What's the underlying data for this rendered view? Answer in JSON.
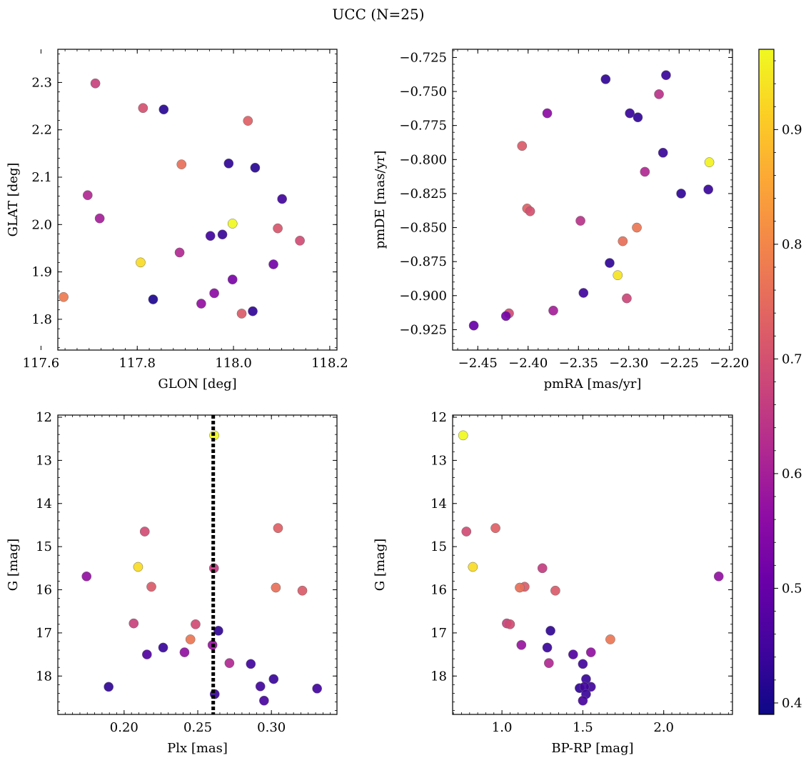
{
  "suptitle": "UCC (N=25)",
  "colorbar": {
    "colormap": "plasma",
    "range": [
      0.39,
      0.97
    ],
    "ticks": [
      "0.4",
      "0.5",
      "0.6",
      "0.7",
      "0.8",
      "0.9"
    ],
    "tick_values": [
      0.4,
      0.5,
      0.6,
      0.7,
      0.8,
      0.9
    ]
  },
  "chart_data": [
    {
      "type": "scatter",
      "xlabel": "GLON [deg]",
      "ylabel": "GLAT [deg]",
      "xlim": [
        117.635,
        118.215
      ],
      "ylim": [
        1.735,
        2.37
      ],
      "xticks": [
        117.6,
        117.8,
        118.0,
        118.2
      ],
      "xticklabels": [
        "117.6",
        "117.8",
        "118.0",
        "118.2"
      ],
      "yticks": [
        1.8,
        1.9,
        2.0,
        2.1,
        2.2,
        2.3
      ],
      "yticklabels": [
        "1.8",
        "1.9",
        "2.0",
        "2.1",
        "2.2",
        "2.3"
      ],
      "xminor": 0.025,
      "yminor": 0.02,
      "points": [
        {
          "x": 117.713,
          "y": 2.298,
          "c": 0.67
        },
        {
          "x": 117.812,
          "y": 2.246,
          "c": 0.7
        },
        {
          "x": 117.855,
          "y": 2.243,
          "c": 0.42
        },
        {
          "x": 118.03,
          "y": 2.219,
          "c": 0.73
        },
        {
          "x": 117.892,
          "y": 2.127,
          "c": 0.76
        },
        {
          "x": 117.99,
          "y": 2.129,
          "c": 0.43
        },
        {
          "x": 118.045,
          "y": 2.12,
          "c": 0.42
        },
        {
          "x": 117.697,
          "y": 2.062,
          "c": 0.62
        },
        {
          "x": 118.101,
          "y": 2.054,
          "c": 0.45
        },
        {
          "x": 117.722,
          "y": 2.013,
          "c": 0.6
        },
        {
          "x": 117.998,
          "y": 2.002,
          "c": 0.97
        },
        {
          "x": 118.092,
          "y": 1.992,
          "c": 0.71
        },
        {
          "x": 118.138,
          "y": 1.966,
          "c": 0.69
        },
        {
          "x": 117.952,
          "y": 1.976,
          "c": 0.45
        },
        {
          "x": 117.977,
          "y": 1.979,
          "c": 0.44
        },
        {
          "x": 117.888,
          "y": 1.941,
          "c": 0.62
        },
        {
          "x": 117.807,
          "y": 1.92,
          "c": 0.93
        },
        {
          "x": 118.083,
          "y": 1.916,
          "c": 0.52
        },
        {
          "x": 117.998,
          "y": 1.884,
          "c": 0.53
        },
        {
          "x": 117.96,
          "y": 1.855,
          "c": 0.56
        },
        {
          "x": 117.647,
          "y": 1.847,
          "c": 0.78
        },
        {
          "x": 117.833,
          "y": 1.842,
          "c": 0.41
        },
        {
          "x": 117.933,
          "y": 1.833,
          "c": 0.57
        },
        {
          "x": 118.04,
          "y": 1.817,
          "c": 0.43
        },
        {
          "x": 118.017,
          "y": 1.812,
          "c": 0.72
        }
      ]
    },
    {
      "type": "scatter",
      "xlabel": "pmRA [mas/yr]",
      "ylabel": "pmDE [mas/yr]",
      "xlim": [
        -2.475,
        -2.197
      ],
      "ylim": [
        -0.94,
        -0.719
      ],
      "xticks": [
        -2.45,
        -2.4,
        -2.35,
        -2.3,
        -2.25,
        -2.2
      ],
      "xticklabels": [
        "−2.45",
        "−2.40",
        "−2.35",
        "−2.30",
        "−2.25",
        "−2.20"
      ],
      "yticks": [
        -0.925,
        -0.9,
        -0.875,
        -0.85,
        -0.825,
        -0.8,
        -0.775,
        -0.75,
        -0.725
      ],
      "yticklabels": [
        "−0.925",
        "−0.900",
        "−0.875",
        "−0.850",
        "−0.825",
        "−0.800",
        "−0.775",
        "−0.750",
        "−0.725"
      ],
      "xminor": 0.01,
      "yminor": 0.005,
      "points": [
        {
          "x": -2.263,
          "y": -0.738,
          "c": 0.44
        },
        {
          "x": -2.323,
          "y": -0.741,
          "c": 0.43
        },
        {
          "x": -2.27,
          "y": -0.752,
          "c": 0.64
        },
        {
          "x": -2.381,
          "y": -0.766,
          "c": 0.56
        },
        {
          "x": -2.299,
          "y": -0.766,
          "c": 0.44
        },
        {
          "x": -2.291,
          "y": -0.769,
          "c": 0.43
        },
        {
          "x": -2.406,
          "y": -0.79,
          "c": 0.72
        },
        {
          "x": -2.266,
          "y": -0.795,
          "c": 0.44
        },
        {
          "x": -2.22,
          "y": -0.802,
          "c": 0.96
        },
        {
          "x": -2.284,
          "y": -0.809,
          "c": 0.62
        },
        {
          "x": -2.248,
          "y": -0.825,
          "c": 0.43
        },
        {
          "x": -2.221,
          "y": -0.822,
          "c": 0.44
        },
        {
          "x": -2.401,
          "y": -0.836,
          "c": 0.73
        },
        {
          "x": -2.398,
          "y": -0.838,
          "c": 0.7
        },
        {
          "x": -2.348,
          "y": -0.845,
          "c": 0.64
        },
        {
          "x": -2.292,
          "y": -0.85,
          "c": 0.77
        },
        {
          "x": -2.306,
          "y": -0.86,
          "c": 0.76
        },
        {
          "x": -2.319,
          "y": -0.876,
          "c": 0.43
        },
        {
          "x": -2.311,
          "y": -0.885,
          "c": 0.94
        },
        {
          "x": -2.345,
          "y": -0.898,
          "c": 0.45
        },
        {
          "x": -2.302,
          "y": -0.902,
          "c": 0.68
        },
        {
          "x": -2.375,
          "y": -0.911,
          "c": 0.6
        },
        {
          "x": -2.419,
          "y": -0.913,
          "c": 0.69
        },
        {
          "x": -2.422,
          "y": -0.915,
          "c": 0.52
        },
        {
          "x": -2.454,
          "y": -0.922,
          "c": 0.5
        }
      ]
    },
    {
      "type": "scatter",
      "xlabel": "Plx [mas]",
      "ylabel": "G [mag]",
      "xlim": [
        0.155,
        0.3445
      ],
      "ylim": [
        18.89,
        11.95
      ],
      "xticks": [
        0.2,
        0.25,
        0.3
      ],
      "xticklabels": [
        "0.20",
        "0.25",
        "0.30"
      ],
      "yticks": [
        12,
        13,
        14,
        15,
        16,
        17,
        18
      ],
      "yticklabels": [
        "12",
        "13",
        "14",
        "15",
        "16",
        "17",
        "18"
      ],
      "xminor": 0.005,
      "yminor": 0.2,
      "vline": {
        "x": 0.2605,
        "style": "dotted"
      },
      "points": [
        {
          "x": 0.2612,
          "y": 12.42,
          "c": 0.97
        },
        {
          "x": 0.214,
          "y": 14.65,
          "c": 0.69
        },
        {
          "x": 0.3045,
          "y": 14.57,
          "c": 0.73
        },
        {
          "x": 0.1745,
          "y": 15.69,
          "c": 0.57
        },
        {
          "x": 0.2095,
          "y": 15.47,
          "c": 0.93
        },
        {
          "x": 0.261,
          "y": 15.5,
          "c": 0.66
        },
        {
          "x": 0.2185,
          "y": 15.93,
          "c": 0.72
        },
        {
          "x": 0.303,
          "y": 15.95,
          "c": 0.76
        },
        {
          "x": 0.321,
          "y": 16.02,
          "c": 0.72
        },
        {
          "x": 0.2065,
          "y": 16.78,
          "c": 0.67
        },
        {
          "x": 0.2485,
          "y": 16.8,
          "c": 0.69
        },
        {
          "x": 0.264,
          "y": 16.95,
          "c": 0.43
        },
        {
          "x": 0.245,
          "y": 17.15,
          "c": 0.77
        },
        {
          "x": 0.26,
          "y": 17.28,
          "c": 0.58
        },
        {
          "x": 0.2265,
          "y": 17.34,
          "c": 0.44
        },
        {
          "x": 0.241,
          "y": 17.45,
          "c": 0.57
        },
        {
          "x": 0.2155,
          "y": 17.5,
          "c": 0.47
        },
        {
          "x": 0.2715,
          "y": 17.7,
          "c": 0.62
        },
        {
          "x": 0.286,
          "y": 17.72,
          "c": 0.45
        },
        {
          "x": 0.3015,
          "y": 18.07,
          "c": 0.44
        },
        {
          "x": 0.1895,
          "y": 18.25,
          "c": 0.43
        },
        {
          "x": 0.2925,
          "y": 18.24,
          "c": 0.45
        },
        {
          "x": 0.331,
          "y": 18.29,
          "c": 0.45
        },
        {
          "x": 0.2615,
          "y": 18.42,
          "c": 0.44
        },
        {
          "x": 0.295,
          "y": 18.57,
          "c": 0.46
        }
      ]
    },
    {
      "type": "scatter",
      "xlabel": "BP-RP [mag]",
      "ylabel": "G [mag]",
      "xlim": [
        0.695,
        2.425
      ],
      "ylim": [
        18.89,
        11.95
      ],
      "xticks": [
        1.0,
        1.5,
        2.0
      ],
      "xticklabels": [
        "1.0",
        "1.5",
        "2.0"
      ],
      "yticks": [
        12,
        13,
        14,
        15,
        16,
        17,
        18
      ],
      "yticklabels": [
        "12",
        "13",
        "14",
        "15",
        "16",
        "17",
        "18"
      ],
      "xminor": 0.05,
      "yminor": 0.2,
      "points": [
        {
          "x": 0.76,
          "y": 12.42,
          "c": 0.97
        },
        {
          "x": 0.78,
          "y": 14.65,
          "c": 0.69
        },
        {
          "x": 0.96,
          "y": 14.57,
          "c": 0.73
        },
        {
          "x": 2.34,
          "y": 15.69,
          "c": 0.57
        },
        {
          "x": 0.82,
          "y": 15.47,
          "c": 0.93
        },
        {
          "x": 1.25,
          "y": 15.5,
          "c": 0.66
        },
        {
          "x": 1.14,
          "y": 15.93,
          "c": 0.72
        },
        {
          "x": 1.11,
          "y": 15.95,
          "c": 0.76
        },
        {
          "x": 1.33,
          "y": 16.02,
          "c": 0.72
        },
        {
          "x": 1.03,
          "y": 16.78,
          "c": 0.67
        },
        {
          "x": 1.05,
          "y": 16.8,
          "c": 0.69
        },
        {
          "x": 1.3,
          "y": 16.95,
          "c": 0.43
        },
        {
          "x": 1.67,
          "y": 17.15,
          "c": 0.77
        },
        {
          "x": 1.12,
          "y": 17.28,
          "c": 0.58
        },
        {
          "x": 1.28,
          "y": 17.34,
          "c": 0.44
        },
        {
          "x": 1.55,
          "y": 17.45,
          "c": 0.57
        },
        {
          "x": 1.44,
          "y": 17.5,
          "c": 0.47
        },
        {
          "x": 1.29,
          "y": 17.7,
          "c": 0.62
        },
        {
          "x": 1.5,
          "y": 17.72,
          "c": 0.45
        },
        {
          "x": 1.52,
          "y": 18.07,
          "c": 0.44
        },
        {
          "x": 1.48,
          "y": 18.28,
          "c": 0.43
        },
        {
          "x": 1.55,
          "y": 18.25,
          "c": 0.45
        },
        {
          "x": 1.51,
          "y": 18.25,
          "c": 0.45
        },
        {
          "x": 1.52,
          "y": 18.42,
          "c": 0.44
        },
        {
          "x": 1.5,
          "y": 18.57,
          "c": 0.46
        }
      ]
    }
  ]
}
